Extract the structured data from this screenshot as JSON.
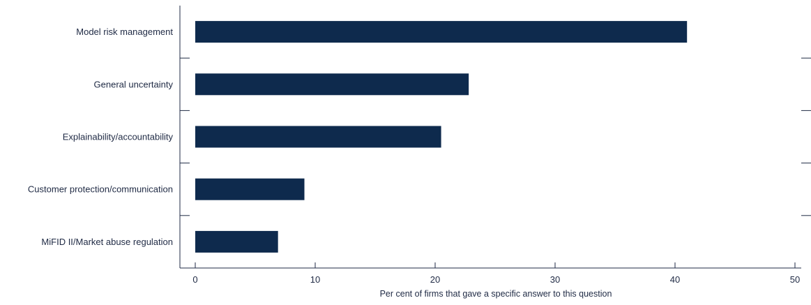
{
  "chart_data": {
    "type": "bar",
    "orientation": "horizontal",
    "categories": [
      "Model risk management",
      "General uncertainty",
      "Explainability/accountability",
      "Customer protection/communication",
      "MiFID II/Market abuse regulation"
    ],
    "values": [
      41,
      22.8,
      20.5,
      9.1,
      6.9
    ],
    "xlabel": "Per cent of firms that gave a specific answer to this question",
    "ylabel": "",
    "title": "",
    "xlim": [
      0,
      50
    ],
    "xticks": [
      "0",
      "10",
      "20",
      "30",
      "40",
      "50"
    ],
    "grid": false,
    "legend": "none",
    "bar_color": "#0e2a4d",
    "axis_color": "#1f2a44"
  }
}
